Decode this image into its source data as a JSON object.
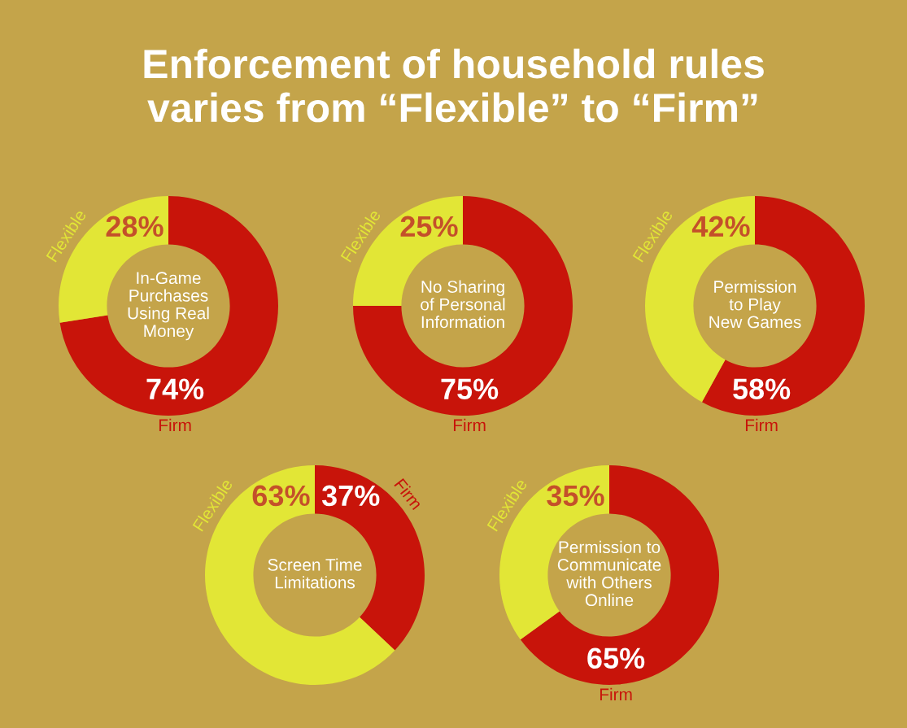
{
  "chart_data": [
    {
      "type": "other",
      "title": "Enforcement of household rules\nvaries from “Flexible” to “Firm”"
    },
    {
      "type": "donut",
      "title": "In-Game\nPurchases\nUsing Real\nMoney",
      "categories": [
        "Firm",
        "Flexible"
      ],
      "values": [
        74,
        28
      ],
      "colors": [
        "#c8140a",
        "#e2e636"
      ],
      "value_labels": [
        "74%",
        "28%"
      ]
    },
    {
      "type": "donut",
      "title": "No Sharing\nof Personal\nInformation",
      "categories": [
        "Firm",
        "Flexible"
      ],
      "values": [
        75,
        25
      ],
      "colors": [
        "#c8140a",
        "#e2e636"
      ],
      "value_labels": [
        "75%",
        "25%"
      ]
    },
    {
      "type": "donut",
      "title": "Permission\nto Play\nNew Games",
      "categories": [
        "Firm",
        "Flexible"
      ],
      "values": [
        58,
        42
      ],
      "colors": [
        "#c8140a",
        "#e2e636"
      ],
      "value_labels": [
        "58%",
        "42%"
      ]
    },
    {
      "type": "donut",
      "title": "Screen Time\nLimitations",
      "categories": [
        "Firm",
        "Flexible"
      ],
      "values": [
        37,
        63
      ],
      "colors": [
        "#c8140a",
        "#e2e636"
      ],
      "value_labels": [
        "37%",
        "63%"
      ]
    },
    {
      "type": "donut",
      "title": "Permission to\nCommunicate\nwith Others\nOnline",
      "categories": [
        "Firm",
        "Flexible"
      ],
      "values": [
        65,
        35
      ],
      "colors": [
        "#c8140a",
        "#e2e636"
      ],
      "value_labels": [
        "65%",
        "35%"
      ]
    }
  ]
}
